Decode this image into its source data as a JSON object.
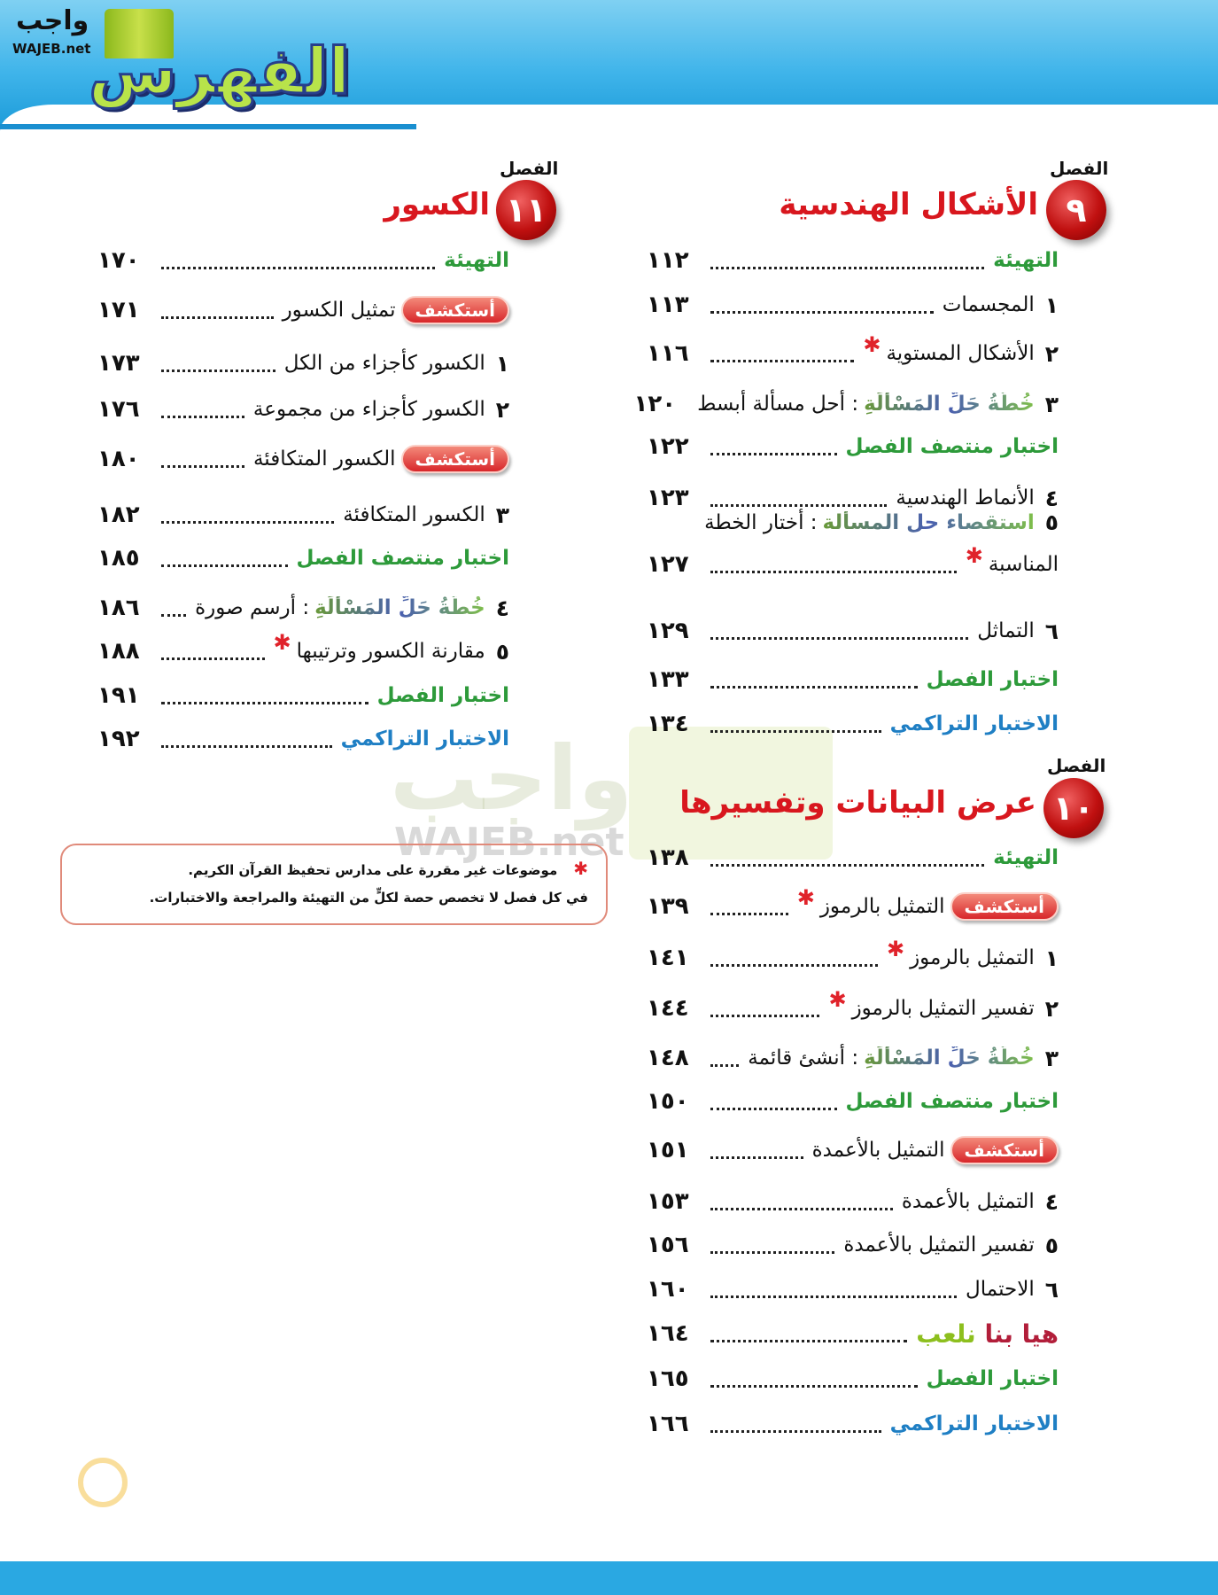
{
  "header": {
    "title": "الفهرس",
    "logo_ar": "واجب",
    "logo_en": "WAJEB.net"
  },
  "watermark": {
    "ar": "واجب",
    "en": "WAJEB.net"
  },
  "colors": {
    "chapter_red": "#d8171e",
    "green": "#2d9a3a",
    "blue": "#1f7fc4",
    "header_blue": "#3fb4ea"
  },
  "chapter_label": "الفصل",
  "explore_label": "أستكشف",
  "chapters": [
    {
      "number": "٩",
      "title": "الأشكال الهندسية",
      "rows": [
        {
          "type": "green",
          "label": "التهيئة",
          "page": "١١٢"
        },
        {
          "type": "lesson",
          "num": "١",
          "label": "المجسمات",
          "page": "١١٣"
        },
        {
          "type": "lesson",
          "num": "٢",
          "label": "الأشكال المستوية",
          "star": true,
          "page": "١١٦"
        },
        {
          "type": "plan",
          "num": "٣",
          "prefix": "خُطَّةُ حَلِّ المَسْأَلَةِ",
          "label": ": أحل مسألة أبسط",
          "page": "١٢٠"
        },
        {
          "type": "green",
          "label": "اختبار منتصف الفصل",
          "page": "١٢٢"
        },
        {
          "type": "lesson",
          "num": "٤",
          "label": "الأنماط الهندسية",
          "page": "١٢٣"
        },
        {
          "type": "plan",
          "num": "٥",
          "prefix": "استقصاء حل المسألة",
          "label": ": أختار الخطة",
          "label2": "المناسبة",
          "star": true,
          "page": "١٢٧"
        },
        {
          "type": "lesson",
          "num": "٦",
          "label": "التماثل",
          "page": "١٢٩"
        },
        {
          "type": "green",
          "label": "اختبار الفصل",
          "page": "١٣٣"
        },
        {
          "type": "blue",
          "label": "الاختبار التراكمي",
          "page": "١٣٤"
        }
      ]
    },
    {
      "number": "١٠",
      "title": "عرض البيانات وتفسيرها",
      "rows": [
        {
          "type": "green",
          "label": "التهيئة",
          "page": "١٣٨"
        },
        {
          "type": "explore",
          "label": "التمثيل بالرموز",
          "star": true,
          "page": "١٣٩"
        },
        {
          "type": "lesson",
          "num": "١",
          "label": "التمثيل بالرموز",
          "star": true,
          "page": "١٤١"
        },
        {
          "type": "lesson",
          "num": "٢",
          "label": "تفسير التمثيل بالرموز",
          "star": true,
          "page": "١٤٤"
        },
        {
          "type": "plan",
          "num": "٣",
          "prefix": "خُطَّةُ حَلِّ المَسْأَلَةِ",
          "label": ": أنشئ قائمة",
          "page": "١٤٨"
        },
        {
          "type": "green",
          "label": "اختبار منتصف الفصل",
          "page": "١٥٠"
        },
        {
          "type": "explore",
          "label": "التمثيل بالأعمدة",
          "page": "١٥١"
        },
        {
          "type": "lesson",
          "num": "٤",
          "label": "التمثيل بالأعمدة",
          "page": "١٥٣"
        },
        {
          "type": "lesson",
          "num": "٥",
          "label": "تفسير التمثيل بالأعمدة",
          "page": "١٥٦"
        },
        {
          "type": "lesson",
          "num": "٦",
          "label": "الاحتمال",
          "page": "١٦٠"
        },
        {
          "type": "game",
          "label": "هيا بنا",
          "label2": "نلعب",
          "page": "١٦٤"
        },
        {
          "type": "green",
          "label": "اختبار الفصل",
          "page": "١٦٥"
        },
        {
          "type": "blue",
          "label": "الاختبار التراكمي",
          "page": "١٦٦"
        }
      ]
    },
    {
      "number": "١١",
      "title": "الكسور",
      "rows": [
        {
          "type": "green",
          "label": "التهيئة",
          "page": "١٧٠"
        },
        {
          "type": "explore",
          "label": "تمثيل الكسور",
          "page": "١٧١"
        },
        {
          "type": "lesson",
          "num": "١",
          "label": "الكسور كأجزاء من الكل",
          "page": "١٧٣"
        },
        {
          "type": "lesson",
          "num": "٢",
          "label": "الكسور كأجزاء من مجموعة",
          "page": "١٧٦"
        },
        {
          "type": "explore",
          "label": "الكسور المتكافئة",
          "page": "١٨٠"
        },
        {
          "type": "lesson",
          "num": "٣",
          "label": "الكسور المتكافئة",
          "page": "١٨٢"
        },
        {
          "type": "green",
          "label": "اختبار منتصف الفصل",
          "page": "١٨٥"
        },
        {
          "type": "plan",
          "num": "٤",
          "prefix": "خُطَّةُ حَلِّ المَسْأَلَةِ",
          "label": ": أرسم صورة",
          "page": "١٨٦"
        },
        {
          "type": "lesson",
          "num": "٥",
          "label": "مقارنة الكسور وترتيبها",
          "star": true,
          "page": "١٨٨"
        },
        {
          "type": "green",
          "label": "اختبار الفصل",
          "page": "١٩١"
        },
        {
          "type": "blue",
          "label": "الاختبار التراكمي",
          "page": "١٩٢"
        }
      ]
    }
  ],
  "note": {
    "line1": "موضوعات غير مقررة على مدارس تحفيظ القرآن الكريم.",
    "line2": "في كل فصل لا تخصص حصة لكلٍّ من التهيئة والمراجعة والاختبارات."
  }
}
